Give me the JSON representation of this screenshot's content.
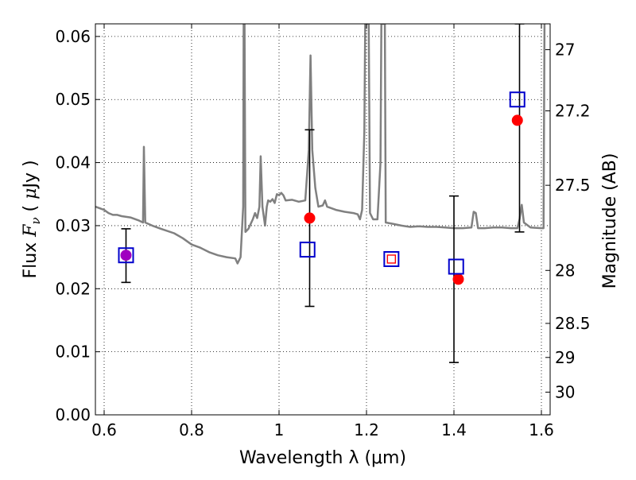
{
  "chart_data": {
    "type": "scatter",
    "xlabel": "Wavelength  λ (μm)",
    "ylabel": "Flux  F_ν  ( μJy )",
    "ylabel_parts": {
      "a": "Flux ",
      "b": "F",
      "c": "ν",
      "d": " ( ",
      "e": "μ",
      "f": "Jy )"
    },
    "y2label": "Magnitude (AB)",
    "xlim": [
      0.58,
      1.62
    ],
    "ylim": [
      0.0,
      0.062
    ],
    "grid": true,
    "xticks": [
      0.6,
      0.8,
      1.0,
      1.2,
      1.4,
      1.6
    ],
    "xtick_labels": [
      "0.6",
      "0.8",
      "1",
      "1.2",
      "1.4",
      "1.6"
    ],
    "yticks": [
      0.0,
      0.01,
      0.02,
      0.03,
      0.04,
      0.05,
      0.06
    ],
    "ytick_labels": [
      "0.00",
      "0.01",
      "0.02",
      "0.03",
      "0.04",
      "0.05",
      "0.06"
    ],
    "y2ticks": [
      {
        "label": "27",
        "flux": 0.0579
      },
      {
        "label": "27.2",
        "flux": 0.0482
      },
      {
        "label": "27.5",
        "flux": 0.0364
      },
      {
        "label": "28",
        "flux": 0.0229
      },
      {
        "label": "28.5",
        "flux": 0.0145
      },
      {
        "label": "29",
        "flux": 0.0091
      },
      {
        "label": "30",
        "flux": 0.0036
      }
    ],
    "series": [
      {
        "kind": "line",
        "color": "#808080",
        "points": [
          [
            0.58,
            0.033
          ],
          [
            0.6,
            0.0325
          ],
          [
            0.61,
            0.032
          ],
          [
            0.62,
            0.0317
          ],
          [
            0.63,
            0.0317
          ],
          [
            0.64,
            0.0315
          ],
          [
            0.66,
            0.0313
          ],
          [
            0.68,
            0.0308
          ],
          [
            0.689,
            0.0305
          ],
          [
            0.691,
            0.0425
          ],
          [
            0.694,
            0.0305
          ],
          [
            0.71,
            0.03
          ],
          [
            0.73,
            0.0295
          ],
          [
            0.76,
            0.0288
          ],
          [
            0.78,
            0.028
          ],
          [
            0.8,
            0.027
          ],
          [
            0.82,
            0.0265
          ],
          [
            0.84,
            0.0258
          ],
          [
            0.86,
            0.0253
          ],
          [
            0.88,
            0.025
          ],
          [
            0.9,
            0.0248
          ],
          [
            0.905,
            0.024
          ],
          [
            0.912,
            0.025
          ],
          [
            0.918,
            0.033
          ],
          [
            0.919,
            0.062
          ],
          [
            0.921,
            0.062
          ],
          [
            0.923,
            0.029
          ],
          [
            0.93,
            0.0295
          ],
          [
            0.94,
            0.031
          ],
          [
            0.945,
            0.032
          ],
          [
            0.95,
            0.0312
          ],
          [
            0.955,
            0.033
          ],
          [
            0.958,
            0.041
          ],
          [
            0.962,
            0.033
          ],
          [
            0.968,
            0.03
          ],
          [
            0.972,
            0.033
          ],
          [
            0.975,
            0.034
          ],
          [
            0.98,
            0.0338
          ],
          [
            0.985,
            0.0342
          ],
          [
            0.99,
            0.0336
          ],
          [
            0.995,
            0.035
          ],
          [
            1.0,
            0.0348
          ],
          [
            1.005,
            0.0352
          ],
          [
            1.01,
            0.0348
          ],
          [
            1.015,
            0.034
          ],
          [
            1.03,
            0.0341
          ],
          [
            1.045,
            0.0338
          ],
          [
            1.06,
            0.034
          ],
          [
            1.068,
            0.042
          ],
          [
            1.072,
            0.057
          ],
          [
            1.076,
            0.042
          ],
          [
            1.083,
            0.036
          ],
          [
            1.09,
            0.033
          ],
          [
            1.1,
            0.0332
          ],
          [
            1.105,
            0.034
          ],
          [
            1.11,
            0.033
          ],
          [
            1.13,
            0.0325
          ],
          [
            1.15,
            0.0322
          ],
          [
            1.17,
            0.032
          ],
          [
            1.18,
            0.0318
          ],
          [
            1.185,
            0.031
          ],
          [
            1.19,
            0.0325
          ],
          [
            1.195,
            0.045
          ],
          [
            1.197,
            0.062
          ],
          [
            1.205,
            0.062
          ],
          [
            1.208,
            0.032
          ],
          [
            1.215,
            0.031
          ],
          [
            1.225,
            0.031
          ],
          [
            1.232,
            0.04
          ],
          [
            1.234,
            0.062
          ],
          [
            1.242,
            0.062
          ],
          [
            1.244,
            0.0305
          ],
          [
            1.26,
            0.0303
          ],
          [
            1.28,
            0.03
          ],
          [
            1.3,
            0.0298
          ],
          [
            1.32,
            0.0299
          ],
          [
            1.34,
            0.0298
          ],
          [
            1.36,
            0.0298
          ],
          [
            1.38,
            0.0297
          ],
          [
            1.4,
            0.0296
          ],
          [
            1.42,
            0.0296
          ],
          [
            1.44,
            0.0297
          ],
          [
            1.445,
            0.0322
          ],
          [
            1.45,
            0.032
          ],
          [
            1.455,
            0.0296
          ],
          [
            1.47,
            0.0296
          ],
          [
            1.49,
            0.0297
          ],
          [
            1.51,
            0.0297
          ],
          [
            1.53,
            0.0296
          ],
          [
            1.545,
            0.0296
          ],
          [
            1.55,
            0.031
          ],
          [
            1.555,
            0.0333
          ],
          [
            1.56,
            0.0305
          ],
          [
            1.575,
            0.0297
          ],
          [
            1.6,
            0.0296
          ],
          [
            1.605,
            0.0296
          ],
          [
            1.607,
            0.062
          ]
        ]
      },
      {
        "kind": "errorbars",
        "color": "#000000",
        "points": [
          {
            "x": 0.65,
            "y": 0.0253,
            "lo": 0.021,
            "hi": 0.0295
          },
          {
            "x": 1.07,
            "y": 0.0312,
            "lo": 0.0172,
            "hi": 0.0452
          },
          {
            "x": 1.4,
            "y": 0.0215,
            "lo": 0.0083,
            "hi": 0.0347
          },
          {
            "x": 1.55,
            "y": 0.0467,
            "lo": 0.029,
            "hi": 0.062
          }
        ]
      },
      {
        "kind": "points",
        "marker": "circle",
        "color": "#ff0000",
        "points": [
          {
            "x": 1.07,
            "y": 0.0312
          },
          {
            "x": 1.41,
            "y": 0.0215
          },
          {
            "x": 1.545,
            "y": 0.0467
          }
        ]
      },
      {
        "kind": "points",
        "marker": "circle",
        "color": "#a000c0",
        "points": [
          {
            "x": 0.65,
            "y": 0.0253
          }
        ]
      },
      {
        "kind": "points",
        "marker": "open-square",
        "color": "#0000cc",
        "points": [
          {
            "x": 0.65,
            "y": 0.0253
          },
          {
            "x": 1.065,
            "y": 0.0262
          },
          {
            "x": 1.405,
            "y": 0.0235
          },
          {
            "x": 1.545,
            "y": 0.05
          }
        ]
      },
      {
        "kind": "points",
        "marker": "open-square",
        "color": "#0000cc",
        "inner_color": "#ff0000",
        "points": [
          {
            "x": 1.257,
            "y": 0.0247
          }
        ]
      }
    ]
  }
}
